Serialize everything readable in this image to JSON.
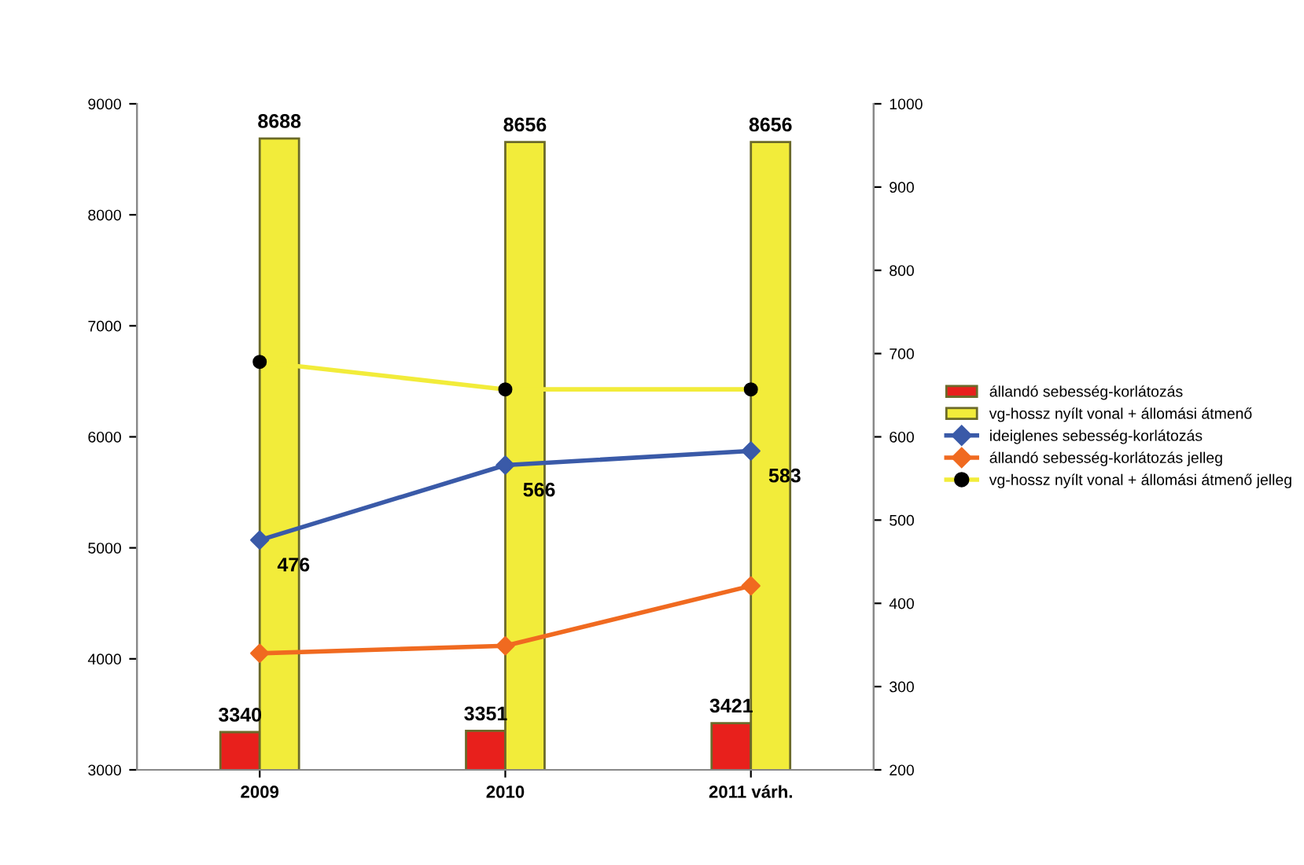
{
  "chart_data": {
    "type": "bar",
    "categories": [
      "2009",
      "2010",
      "2011 várh."
    ],
    "ylim": [
      3000,
      9000
    ],
    "yticks": [
      3000,
      4000,
      5000,
      6000,
      7000,
      8000,
      9000
    ],
    "y2lim": [
      200,
      1000
    ],
    "y2ticks": [
      200,
      300,
      400,
      500,
      600,
      700,
      800,
      900,
      1000
    ],
    "grid": false,
    "legend": "right",
    "series": [
      {
        "name": "állandó sebesség-korlátozás",
        "color": "#e8201c",
        "values": [
          3340,
          3351,
          3421
        ],
        "value_labels": [
          "3340",
          "3351",
          "3421"
        ]
      },
      {
        "name": "vg-hossz nyílt vonal + állomási átmenő",
        "color": "#f2ec3a",
        "values": [
          8688,
          8656,
          8656
        ],
        "value_labels": [
          "8688",
          "8656",
          "8656"
        ]
      },
      {
        "name": "ideiglenes sebesség-korlátozás",
        "type": "line",
        "axis": "y2",
        "color": "#3a5aa8",
        "marker": "diamond",
        "values": [
          476,
          566,
          583
        ],
        "value_labels": [
          "476",
          "566",
          "583"
        ]
      },
      {
        "name": "állandó sebesség-korlátozás jelleg",
        "type": "line",
        "axis": "y2",
        "color": "#f06a20",
        "marker": "diamond",
        "values": [
          340,
          349,
          421
        ]
      },
      {
        "name": "vg-hossz nyílt vonal + állomási átmenő jelleg",
        "type": "line",
        "axis": "y2",
        "color": "#f2ec3a",
        "marker": "circle",
        "colors": [
          "#000000",
          "#000000",
          "#000000"
        ],
        "values": [
          690,
          657,
          657
        ]
      }
    ]
  }
}
